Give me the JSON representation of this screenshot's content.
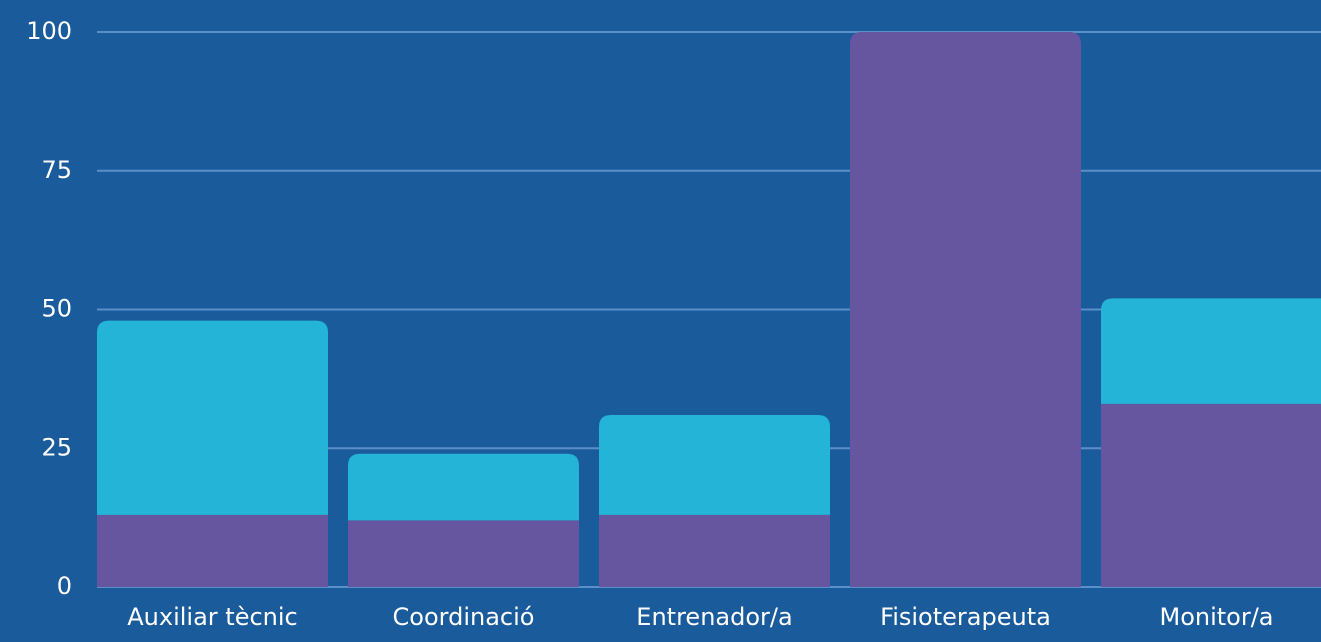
{
  "chart_data": {
    "type": "stacked_bar",
    "categories": [
      "Auxiliar tècnic",
      "Coordinació",
      "Entrenador/a",
      "Fisioterapeuta",
      "Monitor/a"
    ],
    "series": [
      {
        "color": "#6656a0",
        "values": [
          13,
          12,
          13,
          100,
          33
        ]
      },
      {
        "color": "#24b4d8",
        "values": [
          35,
          12,
          18,
          0,
          19
        ]
      }
    ],
    "ylim": [
      0,
      100
    ],
    "yticks": [
      0,
      25,
      50,
      75,
      100
    ],
    "grid": true
  }
}
